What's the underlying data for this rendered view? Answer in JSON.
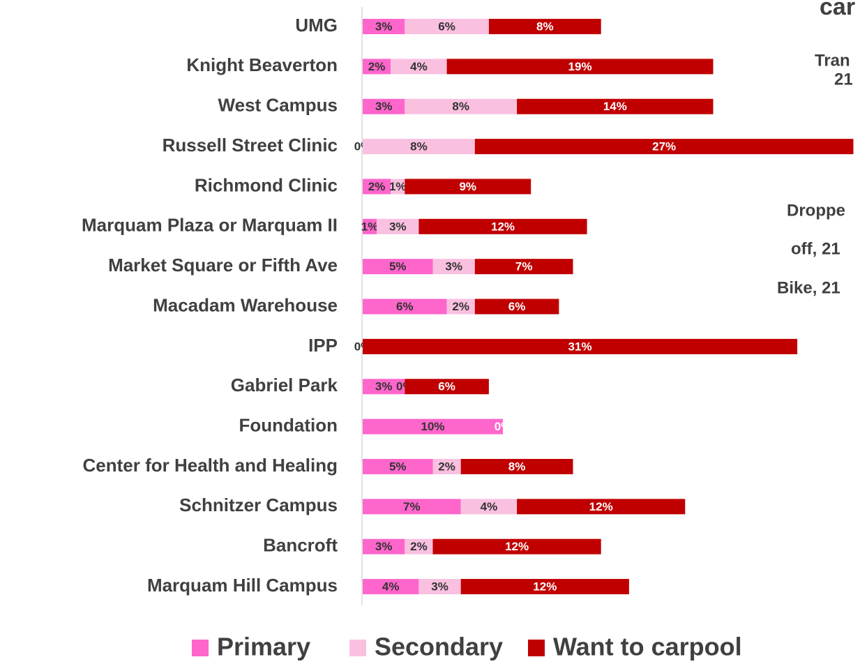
{
  "chart_data": {
    "type": "stacked-bar-horizontal",
    "categories": [
      "UMG",
      "Knight Beaverton",
      "West Campus",
      "Russell Street Clinic",
      "Richmond Clinic",
      "Marquam Plaza or Marquam II",
      "Market Square or Fifth Ave",
      "Macadam Warehouse",
      "IPP",
      "Gabriel Park",
      "Foundation",
      "Center for Health and Healing",
      "Schnitzer Campus",
      "Bancroft",
      "Marquam Hill Campus"
    ],
    "series": [
      {
        "name": "Primary",
        "color": "#ff66cc",
        "label_color": "#333333",
        "values": [
          3,
          2,
          3,
          0,
          2,
          1,
          5,
          6,
          0,
          3,
          10,
          5,
          7,
          3,
          4
        ],
        "value_labels": [
          "3%",
          "2%",
          "3%",
          "0%",
          "2%",
          "1%",
          "5%",
          "6%",
          "0%",
          "3%",
          "10%",
          "5%",
          "7%",
          "3%",
          "4%"
        ]
      },
      {
        "name": "Secondary",
        "color": "#f9c0e0",
        "label_color": "#333333",
        "values": [
          6,
          4,
          8,
          8,
          1,
          3,
          3,
          2,
          null,
          0,
          null,
          2,
          4,
          2,
          3
        ],
        "value_labels": [
          "6%",
          "4%",
          "8%",
          "8%",
          "1%",
          "3%",
          "3%",
          "2%",
          null,
          "0%",
          null,
          "2%",
          "4%",
          "2%",
          "3%"
        ]
      },
      {
        "name": "Want to carpool",
        "color": "#c00000",
        "label_color": "#ffffff",
        "values": [
          8,
          19,
          14,
          27,
          9,
          12,
          7,
          6,
          31,
          6,
          0,
          8,
          12,
          12,
          12
        ],
        "value_labels": [
          "8%",
          "19%",
          "14%",
          "27%",
          "9%",
          "12%",
          "7%",
          "6%",
          "31%",
          "6%",
          "0%",
          "8%",
          "12%",
          "12%",
          "12%"
        ]
      }
    ],
    "annotations": [
      "car",
      "Tran",
      "21",
      "Droppe",
      "off, 21",
      "Bike, 21"
    ]
  }
}
